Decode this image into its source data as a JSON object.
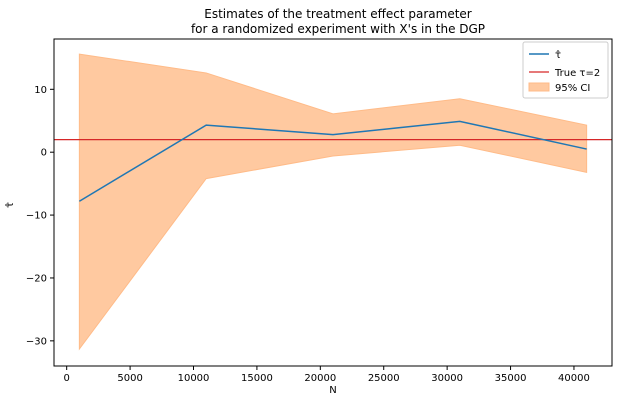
{
  "chart_data": {
    "type": "line",
    "title_lines": [
      "Estimates of the treatment effect parameter",
      "for a randomized experiment with X's in the DGP"
    ],
    "xlabel": "N",
    "ylabel": "τ̂",
    "xlim": [
      -1000,
      43000
    ],
    "ylim": [
      -34,
      18
    ],
    "x_ticks": [
      0,
      5000,
      10000,
      15000,
      20000,
      25000,
      30000,
      35000,
      40000
    ],
    "y_ticks": [
      -30,
      -20,
      -10,
      0,
      10
    ],
    "series": [
      {
        "name": "τ̂",
        "kind": "line",
        "color": "#1f77b4",
        "x": [
          1000,
          11000,
          21000,
          31000,
          41000
        ],
        "y": [
          -7.8,
          4.3,
          2.8,
          4.9,
          0.5
        ]
      },
      {
        "name": "95% CI",
        "kind": "band",
        "color": "#ffbb88",
        "x": [
          1000,
          11000,
          21000,
          31000,
          41000
        ],
        "lower": [
          -31.3,
          -4.2,
          -0.6,
          1.1,
          -3.2
        ],
        "upper": [
          15.6,
          12.6,
          6.1,
          8.5,
          4.3
        ]
      }
    ],
    "reference_lines": [
      {
        "name": "True τ=2",
        "orientation": "horizontal",
        "y": 2,
        "color": "#d62728"
      }
    ],
    "legend": {
      "position": "top-right",
      "entries": [
        "τ̂",
        "True τ=2",
        "95% CI"
      ]
    },
    "grid": false
  }
}
